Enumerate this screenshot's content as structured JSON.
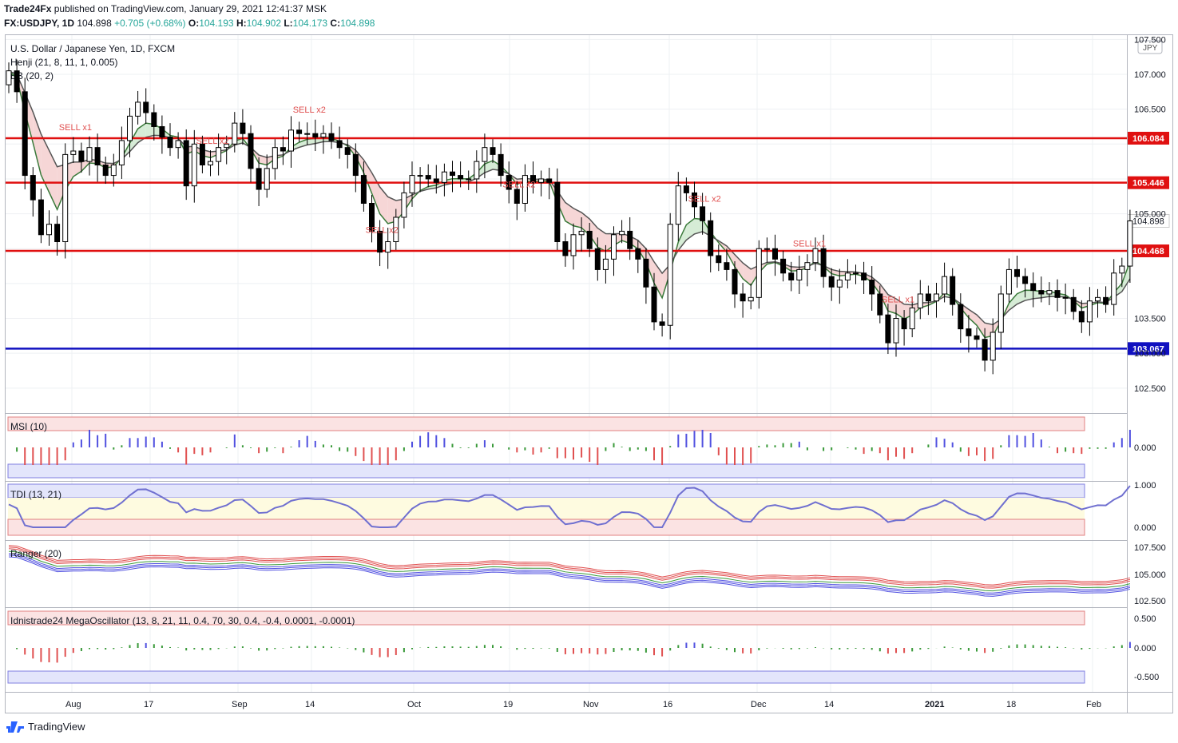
{
  "header": {
    "publisher": "Trade24Fx",
    "published_text": "published on TradingView.com, January 29, 2021 12:41:37 MSK",
    "symbol": "FX:USDJPY, 1D",
    "last": "104.898",
    "change": "+0.705 (+0.68%)",
    "o_label": "O:",
    "o": "104.193",
    "h_label": "H:",
    "h": "104.902",
    "l_label": "L:",
    "l": "104.173",
    "c_label": "C:",
    "c": "104.898"
  },
  "main_pane": {
    "title": "U.S. Dollar / Japanese Yen, 1D, FXCM",
    "indicator1": "Henji (21, 8, 11, 1, 0.005)",
    "indicator2": "BB (20, 2)",
    "currency_badge": "JPY"
  },
  "chart_data": {
    "type": "candlestick",
    "y_ticks": [
      "107.500",
      "107.000",
      "106.500",
      "105.000",
      "103.500",
      "103.000",
      "102.500"
    ],
    "ylim": [
      102.2,
      107.55
    ],
    "x_ticks": [
      "Aug",
      "17",
      "Sep",
      "14",
      "Oct",
      "19",
      "Nov",
      "16",
      "Dec",
      "14",
      "2021",
      "18",
      "Feb"
    ],
    "horizontal_levels": [
      {
        "value": 106.084,
        "label": "106.084",
        "color": "#e01010"
      },
      {
        "value": 105.446,
        "label": "105.446",
        "color": "#e01010"
      },
      {
        "value": 104.468,
        "label": "104.468",
        "color": "#e01010"
      },
      {
        "value": 103.067,
        "label": "103.067",
        "color": "#1010c0"
      }
    ],
    "last_price": {
      "value": 104.898,
      "label": "104.898"
    },
    "closes": [
      107.05,
      106.75,
      105.55,
      105.2,
      104.7,
      104.85,
      104.6,
      105.85,
      105.9,
      105.75,
      105.95,
      105.7,
      105.55,
      105.7,
      106.05,
      106.4,
      106.6,
      106.45,
      106.25,
      106.1,
      105.95,
      106.05,
      105.4,
      106.0,
      105.7,
      105.75,
      105.95,
      106.0,
      106.3,
      106.15,
      105.65,
      105.35,
      105.65,
      105.95,
      105.9,
      106.2,
      106.15,
      106.15,
      106.1,
      106.15,
      106.05,
      105.95,
      105.85,
      105.55,
      105.15,
      104.75,
      104.45,
      104.6,
      104.95,
      105.3,
      105.55,
      105.55,
      105.5,
      105.45,
      105.6,
      105.55,
      105.5,
      105.5,
      105.75,
      105.95,
      105.85,
      105.55,
      105.35,
      105.15,
      105.55,
      105.45,
      105.5,
      105.45,
      104.6,
      104.4,
      104.7,
      104.75,
      104.5,
      104.2,
      104.35,
      104.7,
      104.75,
      104.5,
      104.35,
      103.95,
      103.45,
      103.4,
      104.85,
      105.4,
      105.3,
      105.1,
      104.9,
      104.4,
      104.3,
      104.2,
      103.85,
      103.75,
      103.8,
      104.5,
      104.5,
      104.35,
      104.15,
      104.05,
      104.2,
      104.3,
      104.5,
      104.1,
      103.95,
      104.05,
      104.15,
      104.15,
      104.05,
      103.85,
      103.55,
      103.15,
      103.5,
      103.35,
      103.65,
      103.85,
      103.75,
      103.85,
      104.1,
      103.7,
      103.35,
      103.25,
      103.2,
      102.9,
      103.3,
      103.85,
      104.2,
      104.1,
      104.0,
      103.9,
      103.85,
      103.9,
      103.8,
      103.8,
      103.6,
      103.45,
      103.75,
      103.8,
      103.7,
      104.15,
      104.25,
      104.898
    ],
    "indicators": [
      {
        "name": "MSI (10)",
        "ticks": [
          "0.000"
        ]
      },
      {
        "name": "TDI (13, 21)",
        "ticks": [
          "1.000",
          "0.000"
        ]
      },
      {
        "name": "Ranger (20)",
        "ticks": [
          "107.500",
          "105.000",
          "102.500"
        ]
      },
      {
        "name": "Idnistrade24 MegaOscillator (13, 8, 21, 11, 0.4, 70, 30, 0.4, -0.4, 0.0001, -0.0001)",
        "ticks": [
          "0.500",
          "0.000",
          "-0.500"
        ]
      }
    ]
  },
  "footer": {
    "brand": "TradingView"
  },
  "colors": {
    "up": "#26a69a",
    "bull_candle": "#ffffff",
    "bear_candle": "#000000",
    "sell": "#e05050",
    "buy": "#5050e0",
    "red_level": "#e01010",
    "blue_level": "#1010c0"
  }
}
